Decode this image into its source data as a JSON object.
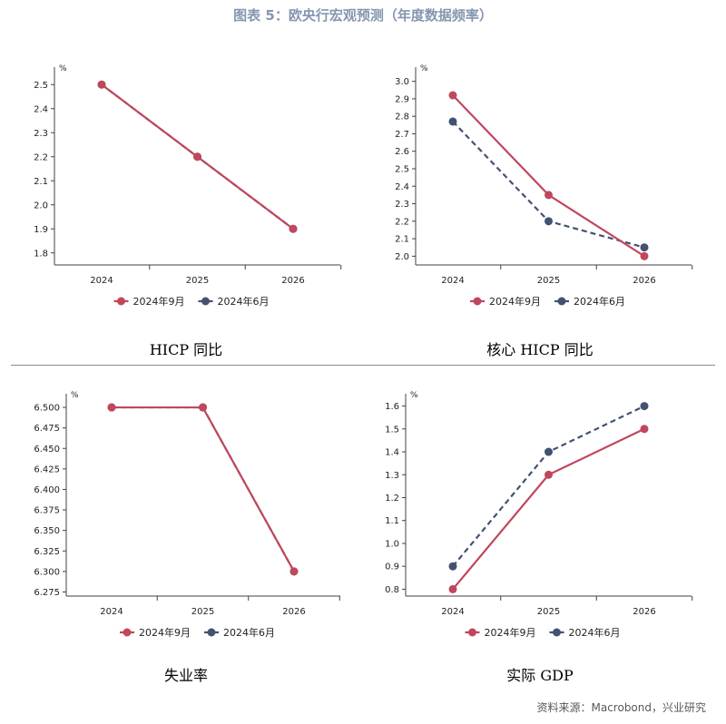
{
  "title": "图表 5：欧央行宏观预测（年度数据频率）",
  "source": "资料来源：Macrobond，兴业研究",
  "colors": {
    "sep": "#c0475c",
    "jun": "#435271",
    "axis": "#404040",
    "title": "#8496b0"
  },
  "chart_data": [
    {
      "type": "line",
      "caption": "HICP 同比",
      "unit": "%",
      "categories": [
        "2024",
        "2025",
        "2026"
      ],
      "ylim": [
        1.75,
        2.55
      ],
      "yticks": [
        1.8,
        1.9,
        2.0,
        2.1,
        2.2,
        2.3,
        2.4,
        2.5
      ],
      "decimals": 1,
      "series": [
        {
          "name": "2024年9月",
          "values": [
            2.5,
            2.2,
            1.9
          ]
        },
        {
          "name": "2024年6月",
          "values": [
            2.5,
            2.2,
            1.9
          ]
        }
      ]
    },
    {
      "type": "line",
      "caption": "核心 HICP 同比",
      "unit": "%",
      "categories": [
        "2024",
        "2025",
        "2026"
      ],
      "ylim": [
        1.95,
        3.05
      ],
      "yticks": [
        2.0,
        2.1,
        2.2,
        2.3,
        2.4,
        2.5,
        2.6,
        2.7,
        2.8,
        2.9,
        3.0
      ],
      "decimals": 1,
      "series": [
        {
          "name": "2024年9月",
          "values": [
            2.92,
            2.35,
            2.0
          ]
        },
        {
          "name": "2024年6月",
          "values": [
            2.77,
            2.2,
            2.05
          ]
        }
      ]
    },
    {
      "type": "line",
      "caption": "失业率",
      "unit": "%",
      "categories": [
        "2024",
        "2025",
        "2026"
      ],
      "ylim": [
        6.27,
        6.51
      ],
      "yticks": [
        6.275,
        6.3,
        6.325,
        6.35,
        6.375,
        6.4,
        6.425,
        6.45,
        6.475,
        6.5
      ],
      "decimals": 3,
      "series": [
        {
          "name": "2024年9月",
          "values": [
            6.5,
            6.5,
            6.3
          ]
        },
        {
          "name": "2024年6月",
          "values": [
            6.5,
            6.5,
            6.3
          ]
        }
      ]
    },
    {
      "type": "line",
      "caption": "实际 GDP",
      "unit": "%",
      "categories": [
        "2024",
        "2025",
        "2026"
      ],
      "ylim": [
        0.77,
        1.63
      ],
      "yticks": [
        0.8,
        0.9,
        1.0,
        1.1,
        1.2,
        1.3,
        1.4,
        1.5,
        1.6
      ],
      "decimals": 1,
      "series": [
        {
          "name": "2024年9月",
          "values": [
            0.8,
            1.3,
            1.5
          ]
        },
        {
          "name": "2024年6月",
          "values": [
            0.9,
            1.4,
            1.6
          ]
        }
      ]
    }
  ]
}
